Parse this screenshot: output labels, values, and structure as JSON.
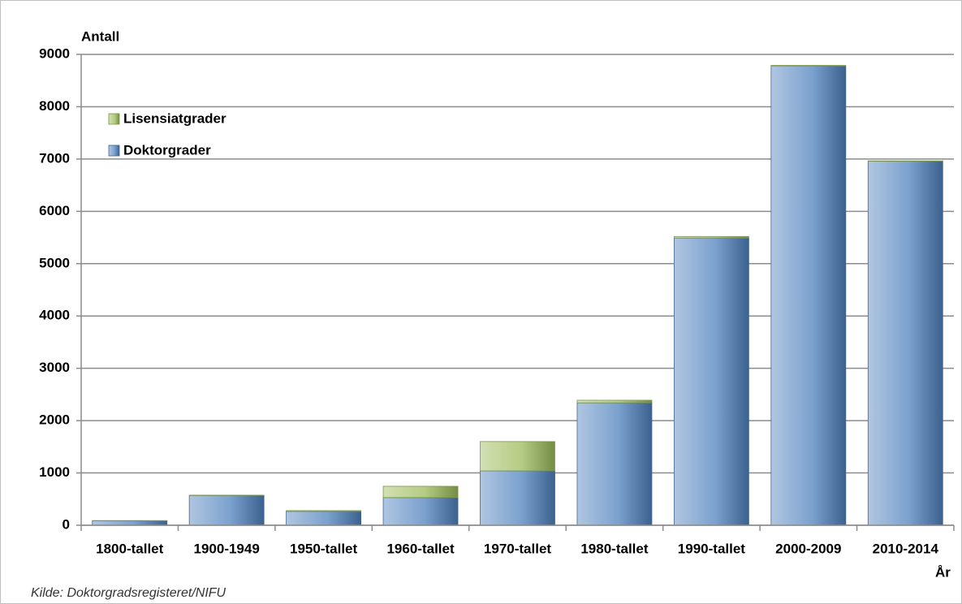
{
  "chart_data": {
    "type": "stacked-bar",
    "y_label": "Antall",
    "x_label": "År",
    "source": "Kilde:  Doktorgradsregisteret/NIFU",
    "categories": [
      "1800-tallet",
      "1900-1949",
      "1950-tallet",
      "1960-tallet",
      "1970-tallet",
      "1980-tallet",
      "1990-tallet",
      "2000-2009",
      "2010-2014"
    ],
    "series": [
      {
        "name": "Doktorgrader",
        "color": "#4f81bd",
        "values": [
          85,
          570,
          265,
          530,
          1040,
          2340,
          5490,
          8780,
          6960
        ]
      },
      {
        "name": "Lisensiatgrader",
        "color": "#9bbb59",
        "values": [
          5,
          5,
          15,
          215,
          560,
          50,
          30,
          10,
          5
        ]
      }
    ],
    "ylim": [
      0,
      9000
    ],
    "yticks": [
      0,
      1000,
      2000,
      3000,
      4000,
      5000,
      6000,
      7000,
      8000,
      9000
    ],
    "grid": true
  }
}
